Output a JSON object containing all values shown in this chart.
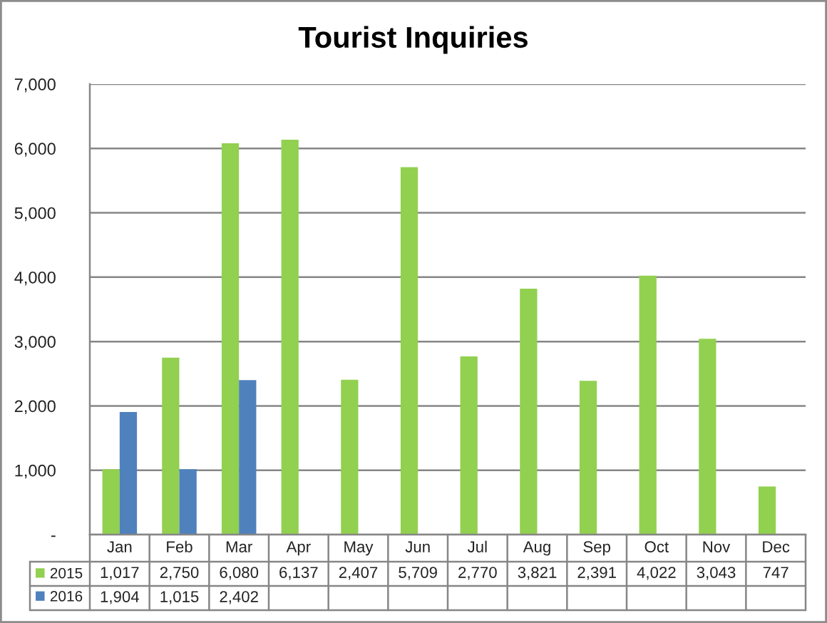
{
  "chart_data": {
    "type": "bar",
    "title": "Tourist Inquiries",
    "categories": [
      "Jan",
      "Feb",
      "Mar",
      "Apr",
      "May",
      "Jun",
      "Jul",
      "Aug",
      "Sep",
      "Oct",
      "Nov",
      "Dec"
    ],
    "series": [
      {
        "name": "2015",
        "color": "#92d050",
        "values": [
          1017,
          2750,
          6080,
          6137,
          2407,
          5709,
          2770,
          3821,
          2391,
          4022,
          3043,
          747
        ],
        "value_labels": [
          "1,017",
          "2,750",
          "6,080",
          "6,137",
          "2,407",
          "5,709",
          "2,770",
          "3,821",
          "2,391",
          "4,022",
          "3,043",
          "747"
        ]
      },
      {
        "name": "2016",
        "color": "#4f81bd",
        "values": [
          1904,
          1015,
          2402,
          null,
          null,
          null,
          null,
          null,
          null,
          null,
          null,
          null
        ],
        "value_labels": [
          "1,904",
          "1,015",
          "2,402",
          null,
          null,
          null,
          null,
          null,
          null,
          null,
          null,
          null
        ]
      }
    ],
    "ylim": [
      0,
      7000
    ],
    "yticks": [
      {
        "value": 0,
        "label": "-"
      },
      {
        "value": 1000,
        "label": "1,000"
      },
      {
        "value": 2000,
        "label": "2,000"
      },
      {
        "value": 3000,
        "label": "3,000"
      },
      {
        "value": 4000,
        "label": "4,000"
      },
      {
        "value": 5000,
        "label": "5,000"
      },
      {
        "value": 6000,
        "label": "6,000"
      },
      {
        "value": 7000,
        "label": "7,000"
      }
    ],
    "grid": "y",
    "legend": "bottom left"
  }
}
